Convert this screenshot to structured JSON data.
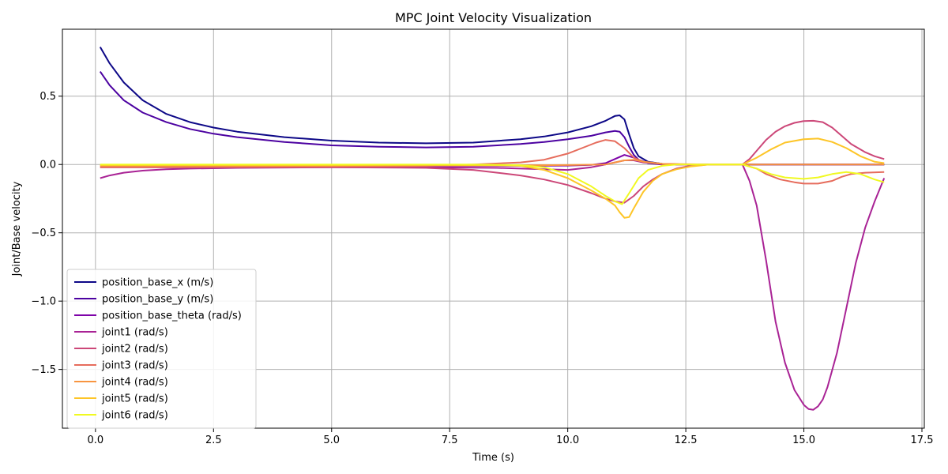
{
  "chart_data": {
    "type": "line",
    "title": "MPC Joint Velocity Visualization",
    "xlabel": "Time (s)",
    "ylabel": "Joint/Base velocity",
    "xlim": [
      -0.7,
      17.55
    ],
    "ylim": [
      -1.93,
      0.99
    ],
    "xticks": [
      0.0,
      2.5,
      5.0,
      7.5,
      10.0,
      12.5,
      15.0,
      17.5
    ],
    "xtick_labels": [
      "0.0",
      "2.5",
      "5.0",
      "7.5",
      "10.0",
      "12.5",
      "15.0",
      "17.5"
    ],
    "yticks": [
      0.5,
      0.0,
      -0.5,
      -1.0,
      -1.5
    ],
    "ytick_labels": [
      "0.5",
      "0.0",
      "−0.5",
      "−1.0",
      "−1.5"
    ],
    "grid": true,
    "legend_position": "lower-left",
    "series": [
      {
        "name": "position_base_x (m/s)",
        "color": "#0d0887",
        "x": [
          0.1,
          0.3,
          0.6,
          1.0,
          1.5,
          2.0,
          2.5,
          3.0,
          4.0,
          5.0,
          6.0,
          7.0,
          8.0,
          9.0,
          9.5,
          10.0,
          10.5,
          10.8,
          11.0,
          11.1,
          11.2,
          11.3,
          11.4,
          11.5,
          11.7,
          12.0,
          12.5,
          13.0,
          14.0,
          15.0,
          16.0,
          16.7
        ],
        "y": [
          0.86,
          0.74,
          0.6,
          0.47,
          0.37,
          0.31,
          0.27,
          0.24,
          0.2,
          0.175,
          0.16,
          0.155,
          0.16,
          0.185,
          0.205,
          0.235,
          0.28,
          0.32,
          0.355,
          0.36,
          0.33,
          0.22,
          0.12,
          0.06,
          0.02,
          0.005,
          0.0,
          0.0,
          0.0,
          0.0,
          0.0,
          0.0
        ]
      },
      {
        "name": "position_base_y (m/s)",
        "color": "#4c02a1",
        "x": [
          0.1,
          0.3,
          0.6,
          1.0,
          1.5,
          2.0,
          2.5,
          3.0,
          4.0,
          5.0,
          6.0,
          7.0,
          8.0,
          9.0,
          9.5,
          10.0,
          10.5,
          10.8,
          11.0,
          11.1,
          11.2,
          11.3,
          11.4,
          11.5,
          11.7,
          12.0,
          12.5,
          13.0,
          14.0,
          15.0,
          16.0,
          16.7
        ],
        "y": [
          0.68,
          0.58,
          0.47,
          0.38,
          0.31,
          0.26,
          0.225,
          0.2,
          0.165,
          0.14,
          0.13,
          0.125,
          0.13,
          0.15,
          0.165,
          0.185,
          0.21,
          0.235,
          0.245,
          0.24,
          0.2,
          0.13,
          0.07,
          0.035,
          0.01,
          0.0,
          0.0,
          0.0,
          0.0,
          0.0,
          0.0,
          0.0
        ]
      },
      {
        "name": "position_base_theta (rad/s)",
        "color": "#7e03a8",
        "x": [
          0.1,
          0.5,
          1.0,
          2.0,
          3.0,
          5.0,
          7.0,
          9.0,
          10.0,
          10.5,
          10.8,
          11.0,
          11.2,
          11.4,
          11.6,
          12.0,
          12.5,
          13.0,
          14.0,
          15.0,
          16.0,
          16.7
        ],
        "y": [
          -0.01,
          -0.01,
          -0.01,
          -0.01,
          -0.01,
          -0.01,
          -0.01,
          -0.01,
          -0.008,
          -0.003,
          0.01,
          0.04,
          0.07,
          0.05,
          0.02,
          0.0,
          0.0,
          0.0,
          0.0,
          0.0,
          0.0,
          0.0
        ]
      },
      {
        "name": "joint1 (rad/s)",
        "color": "#a92395",
        "x": [
          0.1,
          0.3,
          0.6,
          1.0,
          1.5,
          2.0,
          3.0,
          5.0,
          7.0,
          8.5,
          9.5,
          10.0,
          10.5,
          10.8,
          11.0,
          11.2,
          11.4,
          11.6,
          12.0,
          12.5,
          13.0,
          13.5,
          13.7,
          13.85,
          14.0,
          14.2,
          14.4,
          14.6,
          14.8,
          15.0,
          15.1,
          15.2,
          15.3,
          15.4,
          15.5,
          15.7,
          15.9,
          16.1,
          16.3,
          16.5,
          16.7
        ],
        "y": [
          -0.1,
          -0.08,
          -0.06,
          -0.045,
          -0.035,
          -0.03,
          -0.025,
          -0.02,
          -0.02,
          -0.025,
          -0.035,
          -0.04,
          -0.02,
          0.0,
          0.015,
          0.03,
          0.03,
          0.015,
          0.005,
          0.0,
          0.0,
          0.0,
          0.0,
          -0.12,
          -0.3,
          -0.7,
          -1.15,
          -1.45,
          -1.65,
          -1.76,
          -1.79,
          -1.795,
          -1.77,
          -1.72,
          -1.63,
          -1.38,
          -1.05,
          -0.72,
          -0.46,
          -0.27,
          -0.1
        ]
      },
      {
        "name": "joint2 (rad/s)",
        "color": "#cc4778",
        "x": [
          0.1,
          1.0,
          3.0,
          5.0,
          7.0,
          8.0,
          9.0,
          9.5,
          10.0,
          10.5,
          10.8,
          11.0,
          11.2,
          11.4,
          11.6,
          11.8,
          12.0,
          12.3,
          12.6,
          13.0,
          13.5,
          13.7,
          13.85,
          14.0,
          14.2,
          14.4,
          14.6,
          14.8,
          15.0,
          15.2,
          15.4,
          15.6,
          15.8,
          16.0,
          16.3,
          16.5,
          16.7
        ],
        "y": [
          -0.02,
          -0.02,
          -0.02,
          -0.02,
          -0.025,
          -0.04,
          -0.08,
          -0.11,
          -0.15,
          -0.21,
          -0.25,
          -0.27,
          -0.28,
          -0.23,
          -0.16,
          -0.11,
          -0.07,
          -0.03,
          -0.01,
          0.0,
          0.0,
          0.0,
          0.04,
          0.1,
          0.18,
          0.24,
          0.28,
          0.305,
          0.318,
          0.32,
          0.31,
          0.27,
          0.21,
          0.15,
          0.09,
          0.06,
          0.04
        ]
      },
      {
        "name": "joint3 (rad/s)",
        "color": "#e66c5c",
        "x": [
          0.1,
          2.0,
          5.0,
          7.0,
          8.0,
          9.0,
          9.5,
          10.0,
          10.3,
          10.6,
          10.8,
          11.0,
          11.2,
          11.4,
          11.6,
          12.0,
          12.5,
          13.0,
          13.5,
          13.7,
          14.0,
          14.2,
          14.5,
          14.8,
          15.0,
          15.3,
          15.6,
          15.8,
          16.0,
          16.3,
          16.7
        ],
        "y": [
          -0.02,
          -0.02,
          -0.015,
          -0.01,
          0.0,
          0.015,
          0.035,
          0.08,
          0.12,
          0.16,
          0.18,
          0.17,
          0.12,
          0.05,
          0.02,
          0.005,
          0.0,
          0.0,
          0.0,
          0.0,
          -0.03,
          -0.07,
          -0.11,
          -0.13,
          -0.14,
          -0.14,
          -0.12,
          -0.09,
          -0.07,
          -0.06,
          -0.055
        ]
      },
      {
        "name": "joint4 (rad/s)",
        "color": "#f89540",
        "x": [
          0.1,
          3.0,
          6.0,
          9.0,
          10.0,
          10.8,
          11.0,
          11.2,
          11.4,
          11.6,
          12.0,
          13.0,
          14.0,
          15.0,
          16.0,
          16.7
        ],
        "y": [
          -0.01,
          -0.01,
          -0.008,
          -0.006,
          -0.004,
          0.0,
          0.015,
          0.03,
          0.035,
          0.02,
          0.005,
          0.0,
          0.0,
          0.0,
          0.0,
          0.0
        ]
      },
      {
        "name": "joint5 (rad/s)",
        "color": "#fdc527",
        "x": [
          0.1,
          2.0,
          5.0,
          7.0,
          8.5,
          9.0,
          9.5,
          10.0,
          10.5,
          10.8,
          11.0,
          11.1,
          11.2,
          11.3,
          11.4,
          11.6,
          11.8,
          12.0,
          12.3,
          12.6,
          13.0,
          13.5,
          13.7,
          14.0,
          14.3,
          14.6,
          15.0,
          15.3,
          15.6,
          15.9,
          16.2,
          16.5,
          16.7
        ],
        "y": [
          -0.005,
          -0.005,
          -0.005,
          -0.003,
          -0.005,
          -0.01,
          -0.04,
          -0.1,
          -0.19,
          -0.25,
          -0.3,
          -0.35,
          -0.39,
          -0.385,
          -0.32,
          -0.2,
          -0.12,
          -0.07,
          -0.035,
          -0.015,
          0.0,
          0.0,
          0.0,
          0.05,
          0.11,
          0.16,
          0.185,
          0.19,
          0.165,
          0.12,
          0.06,
          0.02,
          0.01
        ]
      },
      {
        "name": "joint6 (rad/s)",
        "color": "#f0f921",
        "x": [
          0.1,
          2.0,
          5.0,
          8.0,
          9.0,
          9.5,
          10.0,
          10.5,
          10.8,
          11.0,
          11.15,
          11.3,
          11.5,
          11.7,
          12.0,
          12.3,
          12.6,
          13.0,
          13.5,
          13.7,
          14.0,
          14.3,
          14.6,
          15.0,
          15.3,
          15.6,
          15.9,
          16.2,
          16.5,
          16.7
        ],
        "y": [
          0.0,
          0.0,
          0.0,
          0.0,
          -0.005,
          -0.02,
          -0.07,
          -0.16,
          -0.23,
          -0.27,
          -0.29,
          -0.21,
          -0.1,
          -0.04,
          -0.01,
          0.0,
          0.0,
          0.0,
          0.0,
          0.0,
          -0.03,
          -0.07,
          -0.095,
          -0.105,
          -0.095,
          -0.07,
          -0.055,
          -0.07,
          -0.11,
          -0.13
        ]
      }
    ]
  }
}
